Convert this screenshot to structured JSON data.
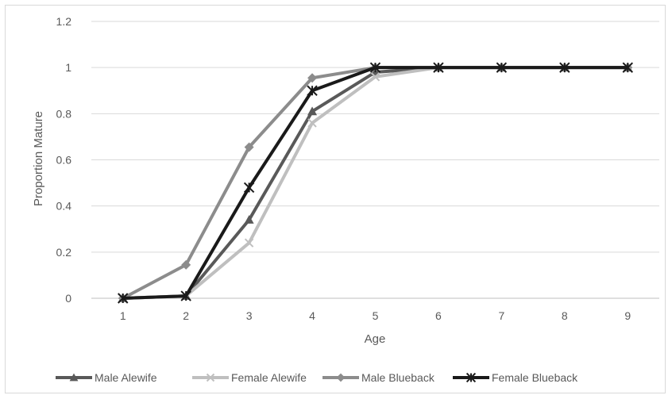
{
  "chart_data": {
    "type": "line",
    "title": "",
    "xlabel": "Age",
    "ylabel": "Proportion Mature",
    "x": [
      1,
      2,
      3,
      4,
      5,
      6,
      7,
      8,
      9
    ],
    "x_tick_labels": [
      "1",
      "2",
      "3",
      "4",
      "5",
      "6",
      "7",
      "8",
      "9"
    ],
    "ylim": [
      0,
      1.2
    ],
    "y_tick_labels": [
      "0",
      "0.2",
      "0.4",
      "0.6",
      "0.8",
      "1",
      "1.2"
    ],
    "grid": "horizontal",
    "legend_position": "bottom",
    "series": [
      {
        "name": "Male Alewife",
        "values": [
          0,
          0.01,
          0.34,
          0.81,
          0.98,
          1,
          1,
          1,
          1
        ],
        "color": "#595959",
        "marker": "triangle"
      },
      {
        "name": "Female Alewife",
        "values": [
          0,
          0.01,
          0.24,
          0.76,
          0.96,
          1,
          1,
          1,
          1
        ],
        "color": "#bfbfbf",
        "marker": "x"
      },
      {
        "name": "Male Blueback",
        "values": [
          0,
          0.145,
          0.655,
          0.955,
          1,
          1,
          1,
          1,
          1
        ],
        "color": "#8c8c8c",
        "marker": "diamond"
      },
      {
        "name": "Female Blueback",
        "values": [
          0,
          0.01,
          0.48,
          0.9,
          1,
          1,
          1,
          1,
          1
        ],
        "color": "#1a1a1a",
        "marker": "star"
      }
    ]
  }
}
